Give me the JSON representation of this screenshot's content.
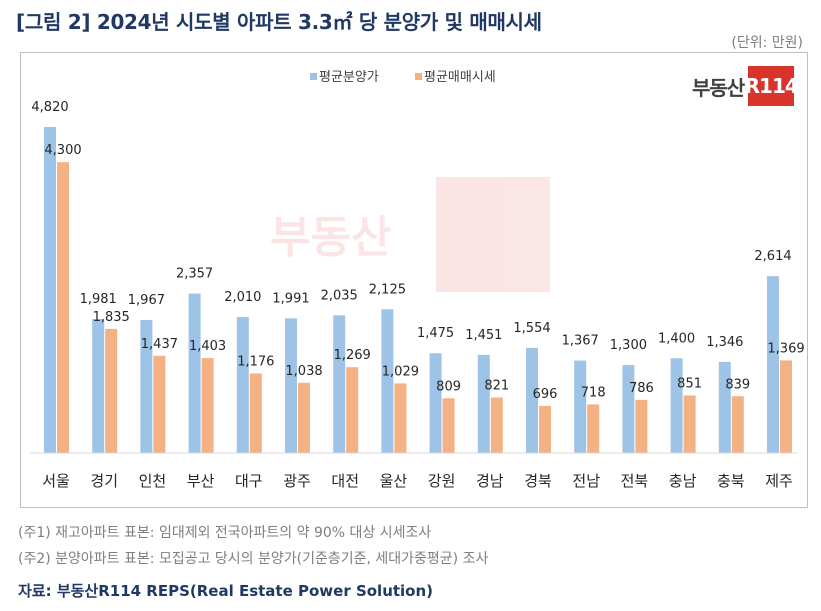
{
  "title": "[그림 2] 2024년 시도별 아파트 3.3㎡ 당 분양가 및 매매시세",
  "unit": "(단위: 만원)",
  "logo": {
    "text": "부동산",
    "badge": "R114"
  },
  "watermark": "부동산R114",
  "notes": [
    "(주1) 재고아파트 표본: 임대제외 전국아파트의 약 90% 대상 시세조사",
    "(주2) 분양아파트 표본: 모집공고 당시의 분양가(기준층기준, 세대가중평균) 조사"
  ],
  "source": "자료: 부동산R114 REPS(Real Estate Power Solution)",
  "colors": {
    "series1": "#9dc3e6",
    "series2": "#f4b183",
    "title": "#1f3864",
    "logo_red": "#d9342b"
  },
  "chart_data": {
    "type": "bar",
    "categories": [
      "서울",
      "경기",
      "인천",
      "부산",
      "대구",
      "광주",
      "대전",
      "울산",
      "강원",
      "경남",
      "경북",
      "전남",
      "전북",
      "충남",
      "충북",
      "제주"
    ],
    "series": [
      {
        "name": "평균분양가",
        "values": [
          4820,
          1981,
          1967,
          2357,
          2010,
          1991,
          2035,
          2125,
          1475,
          1451,
          1554,
          1367,
          1300,
          1400,
          1346,
          2614
        ]
      },
      {
        "name": "평균매매시세",
        "values": [
          4300,
          1835,
          1437,
          1403,
          1176,
          1038,
          1269,
          1029,
          809,
          821,
          696,
          718,
          786,
          851,
          839,
          1369
        ]
      }
    ],
    "legend_position": "top-center",
    "grid": false,
    "ylim": [
      0,
      5000
    ]
  }
}
